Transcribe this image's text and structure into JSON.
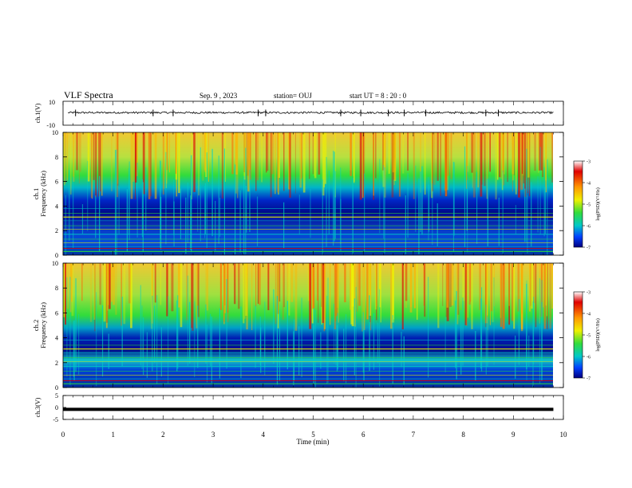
{
  "header": {
    "title": "VLF Spectra",
    "date": "Sep. 9 , 2023",
    "station": "station= OUJ",
    "start_ut": "start UT =  8 : 20 : 0"
  },
  "colors": {
    "spectrum_low": "#00007f",
    "spectrum_mid": "#00c8c8",
    "spectrum_green": "#32dc3c",
    "spectrum_high": "#ff9600",
    "spectrum_max": "#e00000",
    "trace": "#000000"
  },
  "chart_data": [
    {
      "type": "line",
      "panel": "ch1-waveform",
      "ylabel": "ch.1(V)",
      "yticks": [
        "10",
        "-10"
      ],
      "ylim": [
        -10,
        10
      ],
      "xlim": [
        0,
        10
      ],
      "series": [
        {
          "x": [
            0.1,
            1.0,
            2.0,
            3.0,
            4.0,
            5.0,
            6.0,
            7.0,
            8.0,
            9.0,
            9.8
          ],
          "values": [
            0.5,
            0.3,
            0.4,
            0.2,
            0.5,
            0.3,
            0.4,
            0.2,
            0.4,
            0.3,
            0.4
          ]
        }
      ]
    },
    {
      "type": "heatmap",
      "panel": "ch1-spectrogram",
      "ylabel_line1": "ch.1",
      "ylabel_line2": "Frequency (kHz)",
      "yticks": [
        "0",
        "2",
        "4",
        "6",
        "8",
        "10"
      ],
      "ylim": [
        0,
        10
      ],
      "xlim": [
        0,
        10
      ],
      "colorbar": {
        "label": "log(PSD)(V²/Hz)",
        "ticks": [
          "-3",
          "-4",
          "-5",
          "-6",
          "-7"
        ],
        "range": [
          -7,
          -3
        ]
      }
    },
    {
      "type": "heatmap",
      "panel": "ch2-spectrogram",
      "ylabel_line1": "ch.2",
      "ylabel_line2": "Frequency (kHz)",
      "yticks": [
        "0",
        "2",
        "4",
        "6",
        "8",
        "10"
      ],
      "ylim": [
        0,
        10
      ],
      "xlim": [
        0,
        10
      ],
      "colorbar": {
        "label": "log(PSD)(V²/Hz)",
        "ticks": [
          "-3",
          "-4",
          "-5",
          "-6",
          "-7"
        ],
        "range": [
          -7,
          -3
        ]
      }
    },
    {
      "type": "line",
      "panel": "ch3-waveform",
      "ylabel": "ch.3(V)",
      "yticks": [
        "5",
        "0",
        "-5"
      ],
      "ylim": [
        -5,
        5
      ],
      "xlim": [
        0,
        10
      ],
      "series": [
        {
          "x": [
            0,
            9.8
          ],
          "values": [
            -0.8,
            -0.8
          ]
        }
      ]
    }
  ],
  "xaxis": {
    "label": "Time (min)",
    "ticks": [
      "0",
      "1",
      "2",
      "3",
      "4",
      "5",
      "6",
      "7",
      "8",
      "9",
      "10"
    ]
  }
}
